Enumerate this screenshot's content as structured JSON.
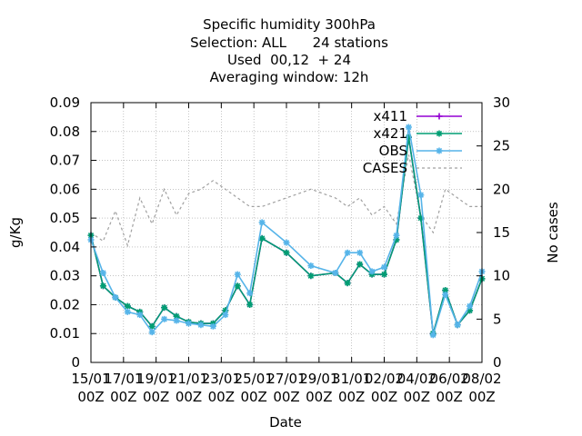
{
  "chart_data": {
    "type": "line",
    "title_lines": [
      "Specific humidity 300hPa",
      "Selection: ALL      24 stations",
      "Used  00,12  + 24",
      "Averaging window: 12h"
    ],
    "xlabel": "Date",
    "ylabel": "g/Kg",
    "y2label": "No cases",
    "ylim": [
      0,
      0.09
    ],
    "y2lim": [
      0,
      30
    ],
    "xlim": [
      0,
      16
    ],
    "yticks": [
      "0",
      "0.01",
      "0.02",
      "0.03",
      "0.04",
      "0.05",
      "0.06",
      "0.07",
      "0.08",
      "0.09"
    ],
    "y2ticks": [
      "0",
      "5",
      "10",
      "15",
      "20",
      "25",
      "30"
    ],
    "xtick_dates": [
      "15/01",
      "17/01",
      "19/01",
      "21/01",
      "23/01",
      "25/01",
      "27/01",
      "29/01",
      "31/01",
      "02/02",
      "04/02",
      "06/02",
      "08/02"
    ],
    "xtick_hour": "00Z",
    "grid": true,
    "legend_position": "top-right",
    "series": [
      {
        "name": "x411",
        "color": "#9400d3",
        "marker": "plus",
        "x": [
          0,
          0.5,
          1.0,
          1.5,
          2.0,
          2.5,
          3.0,
          3.5,
          4.0,
          4.5,
          5.0,
          5.5,
          6.0,
          6.5,
          7.0,
          8.0,
          9.0,
          10.0,
          10.5,
          11.0,
          11.5,
          12.0,
          12.5,
          13.0,
          13.5,
          14.0,
          14.5,
          15.0,
          15.5,
          16.0
        ],
        "y": [
          0.044,
          0.0265,
          0.0225,
          0.0195,
          0.0175,
          0.0125,
          0.019,
          0.016,
          0.014,
          0.0135,
          0.0135,
          0.018,
          0.0265,
          0.02,
          0.043,
          0.038,
          0.03,
          0.031,
          0.0275,
          0.034,
          0.0305,
          0.0305,
          0.0425,
          0.078,
          0.05,
          0.01,
          0.025,
          0.013,
          0.018,
          0.029
        ]
      },
      {
        "name": "x421",
        "color": "#009e73",
        "marker": "star",
        "x": [
          0,
          0.5,
          1.0,
          1.5,
          2.0,
          2.5,
          3.0,
          3.5,
          4.0,
          4.5,
          5.0,
          5.5,
          6.0,
          6.5,
          7.0,
          8.0,
          9.0,
          10.0,
          10.5,
          11.0,
          11.5,
          12.0,
          12.5,
          13.0,
          13.5,
          14.0,
          14.5,
          15.0,
          15.5,
          16.0
        ],
        "y": [
          0.044,
          0.0265,
          0.0225,
          0.0195,
          0.0175,
          0.0125,
          0.019,
          0.016,
          0.014,
          0.0135,
          0.0135,
          0.018,
          0.0265,
          0.02,
          0.043,
          0.038,
          0.03,
          0.031,
          0.0275,
          0.034,
          0.0305,
          0.0305,
          0.0425,
          0.078,
          0.05,
          0.01,
          0.025,
          0.013,
          0.018,
          0.029
        ]
      },
      {
        "name": "OBS",
        "color": "#56b4e9",
        "marker": "star",
        "x": [
          0,
          0.5,
          1.0,
          1.5,
          2.0,
          2.5,
          3.0,
          3.5,
          4.0,
          4.5,
          5.0,
          5.5,
          6.0,
          6.5,
          7.0,
          8.0,
          9.0,
          10.0,
          10.5,
          11.0,
          11.5,
          12.0,
          12.5,
          13.0,
          13.5,
          14.0,
          14.5,
          15.0,
          15.5,
          16.0
        ],
        "y": [
          0.0425,
          0.031,
          0.0225,
          0.0175,
          0.0165,
          0.0105,
          0.015,
          0.0145,
          0.0135,
          0.013,
          0.0125,
          0.0165,
          0.0305,
          0.024,
          0.0485,
          0.0415,
          0.0335,
          0.031,
          0.038,
          0.038,
          0.0315,
          0.033,
          0.044,
          0.0815,
          0.058,
          0.0095,
          0.0235,
          0.013,
          0.0195,
          0.0315
        ]
      },
      {
        "name": "CASES",
        "color": "#a0a0a0",
        "axis": "right",
        "x": [
          0,
          0.5,
          1.0,
          1.5,
          2.0,
          2.5,
          3.0,
          3.5,
          4.0,
          4.5,
          5.0,
          5.5,
          6.0,
          6.5,
          7.0,
          8.0,
          9.0,
          10.0,
          10.5,
          11.0,
          11.5,
          12.0,
          12.5,
          13.0,
          13.5,
          14.0,
          14.5,
          15.0,
          15.5,
          16.0
        ],
        "y": [
          15,
          14,
          17.5,
          13.5,
          19,
          16,
          20,
          17,
          19.5,
          20,
          21,
          20,
          19,
          18,
          18,
          19,
          20,
          19,
          18,
          19,
          17,
          18,
          16,
          24,
          17,
          15,
          20,
          19,
          18,
          18
        ]
      }
    ]
  }
}
